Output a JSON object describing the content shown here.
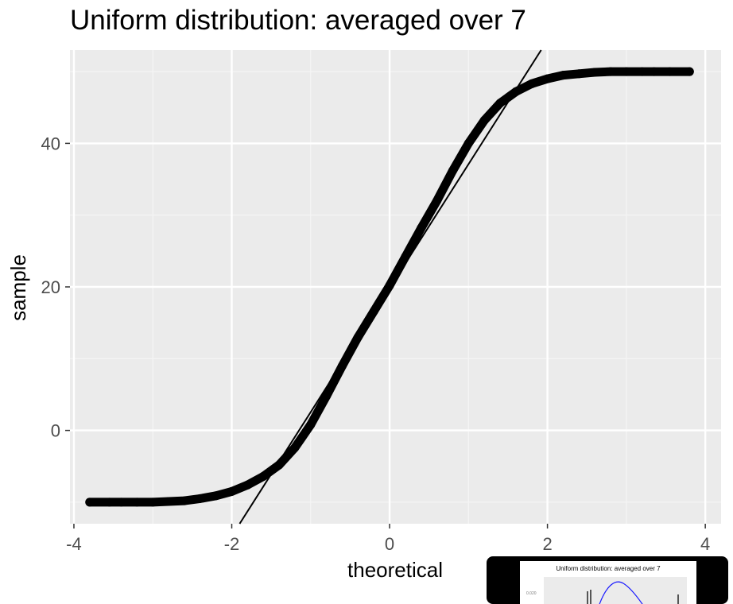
{
  "chart_data": {
    "type": "scatter",
    "title": "Uniform distribution: averaged over 7",
    "xlabel": "theoretical",
    "ylabel": "sample",
    "xlim": [
      -4.05,
      4.2
    ],
    "ylim": [
      -13,
      53
    ],
    "x_ticks": [
      -4,
      -2,
      0,
      2,
      4
    ],
    "y_ticks": [
      0,
      20,
      40
    ],
    "grid": true,
    "series": [
      {
        "kind": "qq-points",
        "points": [
          [
            -3.8,
            -10
          ],
          [
            -3.55,
            -10
          ],
          [
            -3.4,
            -10
          ],
          [
            -3.2,
            -10
          ],
          [
            -3.0,
            -10
          ],
          [
            -2.8,
            -9.9
          ],
          [
            -2.6,
            -9.8
          ],
          [
            -2.4,
            -9.5
          ],
          [
            -2.2,
            -9.1
          ],
          [
            -2.0,
            -8.5
          ],
          [
            -1.8,
            -7.6
          ],
          [
            -1.6,
            -6.4
          ],
          [
            -1.4,
            -4.8
          ],
          [
            -1.2,
            -2.4
          ],
          [
            -1.0,
            0.8
          ],
          [
            -0.8,
            4.8
          ],
          [
            -0.6,
            9.0
          ],
          [
            -0.4,
            13.0
          ],
          [
            -0.2,
            16.6
          ],
          [
            0.0,
            20.2
          ],
          [
            0.2,
            24.2
          ],
          [
            0.4,
            28.2
          ],
          [
            0.6,
            32.0
          ],
          [
            0.8,
            36.2
          ],
          [
            1.0,
            40.0
          ],
          [
            1.2,
            43.2
          ],
          [
            1.4,
            45.6
          ],
          [
            1.6,
            47.2
          ],
          [
            1.8,
            48.3
          ],
          [
            2.0,
            49.0
          ],
          [
            2.2,
            49.5
          ],
          [
            2.4,
            49.7
          ],
          [
            2.6,
            49.9
          ],
          [
            2.8,
            50.0
          ],
          [
            3.0,
            50.0
          ],
          [
            3.2,
            50.0
          ],
          [
            3.35,
            50.0
          ],
          [
            3.55,
            50.0
          ],
          [
            3.8,
            50.0
          ]
        ]
      },
      {
        "kind": "reference-line",
        "from": [
          -1.9,
          -13.0
        ],
        "to": [
          1.92,
          53.0
        ]
      }
    ]
  },
  "thumbnail": {
    "title": "Uniform distribution: averaged over 7",
    "tick": "0.020"
  }
}
